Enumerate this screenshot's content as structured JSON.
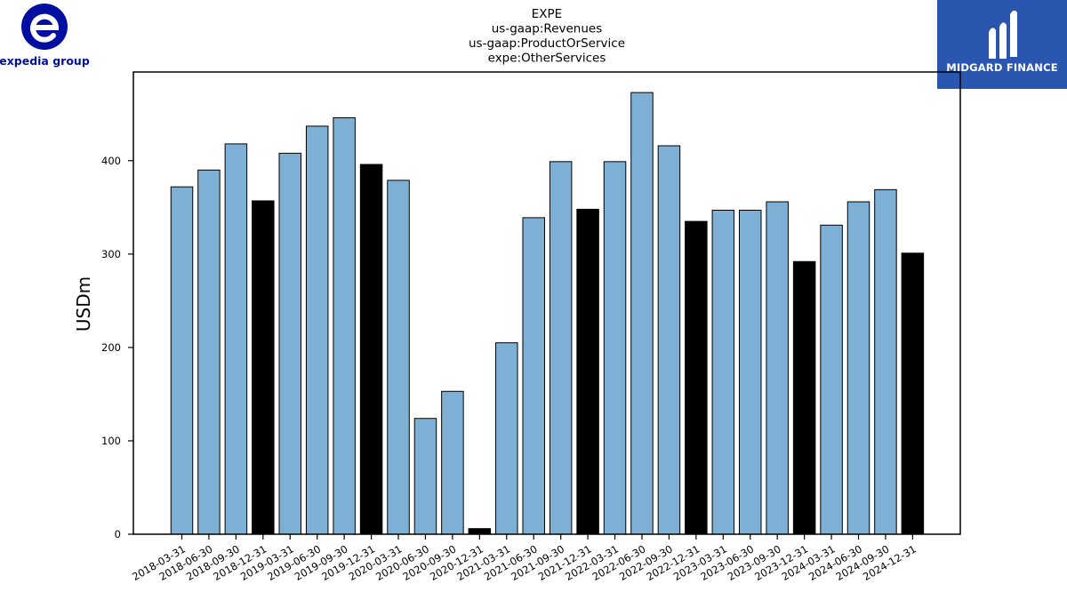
{
  "brand_left": {
    "name": "expedia group",
    "color": "#000f9f"
  },
  "brand_right": {
    "name": "MIDGARD FINANCE",
    "background": "#2a56b0"
  },
  "chart_data": {
    "type": "bar",
    "title_lines": [
      "EXPE",
      "us-gaap:Revenues",
      "us-gaap:ProductOrService",
      "expe:OtherServices"
    ],
    "xlabel": "",
    "ylabel": "USDm",
    "ylim": [
      0,
      495
    ],
    "yticks": [
      0,
      100,
      200,
      300,
      400
    ],
    "grid": false,
    "colors": {
      "quarter": "#7eb0d5",
      "year_end": "#000000",
      "edge": "#000000"
    },
    "categories": [
      "2018-03-31",
      "2018-06-30",
      "2018-09-30",
      "2018-12-31",
      "2019-03-31",
      "2019-06-30",
      "2019-09-30",
      "2019-12-31",
      "2020-03-31",
      "2020-06-30",
      "2020-09-30",
      "2020-12-31",
      "2021-03-31",
      "2021-06-30",
      "2021-09-30",
      "2021-12-31",
      "2022-03-31",
      "2022-06-30",
      "2022-09-30",
      "2022-12-31",
      "2023-03-31",
      "2023-06-30",
      "2023-09-30",
      "2023-12-31",
      "2024-03-31",
      "2024-06-30",
      "2024-09-30",
      "2024-12-31"
    ],
    "values": [
      372,
      390,
      418,
      357,
      408,
      437,
      446,
      396,
      379,
      124,
      153,
      6,
      205,
      339,
      399,
      348,
      399,
      473,
      416,
      335,
      347,
      347,
      356,
      292,
      331,
      356,
      369,
      301
    ]
  }
}
